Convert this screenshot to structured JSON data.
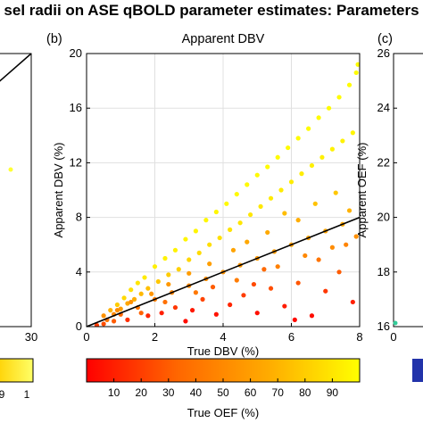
{
  "figure": {
    "title": "sel radii on ASE qBOLD parameter estimates: Parameters",
    "panel_b_label": "(b)",
    "panel_c_label": "(c)"
  },
  "left_panel": {
    "x_tick_right": "30",
    "colorbar_ticks": [
      "9",
      "1"
    ]
  },
  "right_panel": {
    "y_ticks": [
      "26",
      "24",
      "22",
      "20",
      "18",
      "16"
    ],
    "x_tick_left": "0",
    "ylabel": "Apparent OEF (%)"
  },
  "chart_data": {
    "type": "scatter",
    "title": "Apparent DBV",
    "xlabel": "True DBV (%)",
    "ylabel": "Apparent DBV (%)",
    "xlim": [
      0,
      8
    ],
    "ylim": [
      0,
      20
    ],
    "x_ticks": [
      0,
      2,
      4,
      6,
      8
    ],
    "y_ticks": [
      0,
      4,
      8,
      12,
      16,
      20
    ],
    "grid": true,
    "fit_line": {
      "x": [
        0,
        8
      ],
      "y": [
        0,
        8
      ]
    },
    "colorbar": {
      "label": "True OEF (%)",
      "ticks": [
        10,
        20,
        30,
        40,
        50,
        60,
        70,
        80,
        90
      ],
      "range": [
        0,
        100
      ],
      "colors": [
        "#ff0000",
        "#ff6600",
        "#ffaa00",
        "#ffff00"
      ]
    },
    "points": [
      [
        0.3,
        0.1,
        20
      ],
      [
        0.5,
        0.8,
        55
      ],
      [
        0.7,
        1.2,
        70
      ],
      [
        0.9,
        1.6,
        80
      ],
      [
        1.1,
        2.1,
        85
      ],
      [
        1.3,
        2.7,
        88
      ],
      [
        1.5,
        3.2,
        90
      ],
      [
        1.7,
        3.6,
        92
      ],
      [
        2.0,
        4.4,
        94
      ],
      [
        2.3,
        5.0,
        95
      ],
      [
        2.6,
        5.6,
        95
      ],
      [
        2.9,
        6.4,
        96
      ],
      [
        3.2,
        7.0,
        96
      ],
      [
        3.5,
        7.8,
        97
      ],
      [
        3.8,
        8.4,
        97
      ],
      [
        4.1,
        9.0,
        98
      ],
      [
        4.4,
        9.7,
        98
      ],
      [
        4.7,
        10.4,
        98
      ],
      [
        5.0,
        11.1,
        98
      ],
      [
        5.3,
        11.7,
        99
      ],
      [
        5.6,
        12.4,
        99
      ],
      [
        5.9,
        13.1,
        99
      ],
      [
        6.2,
        13.8,
        99
      ],
      [
        6.5,
        14.5,
        99
      ],
      [
        6.8,
        15.3,
        99
      ],
      [
        7.1,
        16.0,
        99
      ],
      [
        7.4,
        16.8,
        99
      ],
      [
        7.7,
        17.7,
        99
      ],
      [
        7.9,
        18.6,
        99
      ],
      [
        7.95,
        19.2,
        99
      ],
      [
        0.6,
        0.5,
        40
      ],
      [
        0.8,
        0.9,
        50
      ],
      [
        1.0,
        1.3,
        60
      ],
      [
        1.2,
        1.7,
        65
      ],
      [
        1.4,
        2.0,
        68
      ],
      [
        1.6,
        2.4,
        72
      ],
      [
        1.8,
        2.8,
        75
      ],
      [
        2.1,
        3.3,
        78
      ],
      [
        2.4,
        3.8,
        80
      ],
      [
        2.7,
        4.2,
        82
      ],
      [
        3.0,
        4.9,
        84
      ],
      [
        3.3,
        5.4,
        86
      ],
      [
        3.6,
        6.0,
        87
      ],
      [
        3.9,
        6.5,
        88
      ],
      [
        4.2,
        7.1,
        89
      ],
      [
        4.5,
        7.6,
        90
      ],
      [
        4.8,
        8.2,
        90
      ],
      [
        5.1,
        8.8,
        91
      ],
      [
        5.4,
        9.4,
        92
      ],
      [
        5.7,
        10.0,
        92
      ],
      [
        6.0,
        10.6,
        93
      ],
      [
        6.3,
        11.2,
        93
      ],
      [
        6.6,
        11.8,
        94
      ],
      [
        6.9,
        12.4,
        94
      ],
      [
        7.2,
        13.0,
        95
      ],
      [
        7.5,
        13.6,
        95
      ],
      [
        7.8,
        14.2,
        96
      ],
      [
        1.0,
        0.9,
        35
      ],
      [
        1.5,
        1.4,
        40
      ],
      [
        2.0,
        2.0,
        45
      ],
      [
        2.5,
        2.5,
        48
      ],
      [
        3.0,
        3.0,
        50
      ],
      [
        3.5,
        3.5,
        52
      ],
      [
        4.0,
        4.0,
        55
      ],
      [
        4.5,
        4.5,
        57
      ],
      [
        5.0,
        5.0,
        58
      ],
      [
        5.5,
        5.5,
        60
      ],
      [
        6.0,
        6.0,
        62
      ],
      [
        6.5,
        6.5,
        63
      ],
      [
        7.0,
        7.0,
        64
      ],
      [
        7.5,
        7.5,
        65
      ],
      [
        1.2,
        0.5,
        15
      ],
      [
        1.8,
        0.8,
        12
      ],
      [
        2.2,
        1.0,
        10
      ],
      [
        2.6,
        1.4,
        18
      ],
      [
        3.1,
        1.2,
        8
      ],
      [
        3.4,
        2.0,
        22
      ],
      [
        3.8,
        0.9,
        6
      ],
      [
        4.2,
        1.6,
        12
      ],
      [
        4.6,
        2.3,
        20
      ],
      [
        5.0,
        1.0,
        5
      ],
      [
        5.4,
        2.8,
        25
      ],
      [
        5.8,
        1.5,
        9
      ],
      [
        6.2,
        3.2,
        28
      ],
      [
        6.6,
        0.8,
        4
      ],
      [
        7.0,
        2.6,
        18
      ],
      [
        7.4,
        4.0,
        30
      ],
      [
        7.8,
        1.8,
        10
      ],
      [
        2.9,
        0.4,
        4
      ],
      [
        4.9,
        3.1,
        24
      ],
      [
        6.8,
        4.9,
        40
      ],
      [
        7.6,
        6.0,
        48
      ],
      [
        5.2,
        4.2,
        35
      ],
      [
        3.7,
        2.9,
        30
      ],
      [
        6.1,
        0.5,
        3
      ],
      [
        0.5,
        0.2,
        25
      ],
      [
        0.8,
        0.4,
        30
      ],
      [
        1.6,
        1.0,
        32
      ],
      [
        2.3,
        1.8,
        38
      ],
      [
        3.2,
        2.5,
        42
      ],
      [
        4.4,
        3.4,
        44
      ],
      [
        5.6,
        4.4,
        46
      ],
      [
        6.4,
        5.2,
        50
      ],
      [
        7.2,
        5.8,
        52
      ],
      [
        7.9,
        6.6,
        54
      ],
      [
        7.7,
        8.5,
        70
      ],
      [
        7.3,
        9.8,
        78
      ],
      [
        6.7,
        9.0,
        76
      ],
      [
        6.2,
        7.8,
        68
      ],
      [
        5.8,
        8.3,
        74
      ],
      [
        5.3,
        6.9,
        66
      ],
      [
        4.7,
        6.2,
        65
      ],
      [
        4.3,
        5.6,
        63
      ],
      [
        3.6,
        4.6,
        61
      ],
      [
        3.0,
        3.9,
        60
      ],
      [
        2.4,
        3.1,
        58
      ],
      [
        1.9,
        2.4,
        56
      ],
      [
        1.3,
        1.8,
        54
      ],
      [
        0.9,
        1.2,
        52
      ]
    ]
  }
}
